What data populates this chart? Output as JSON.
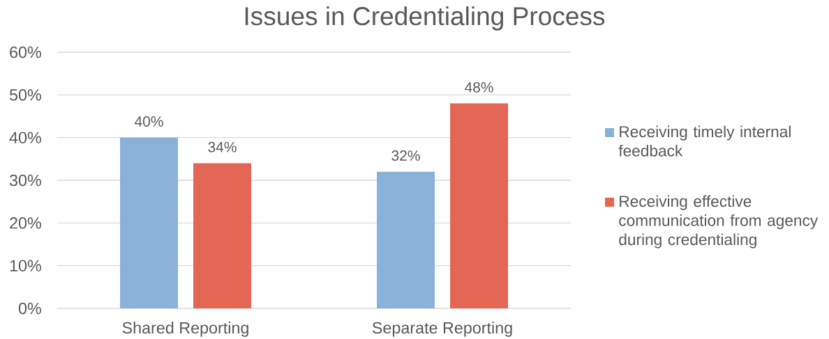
{
  "chart_data": {
    "type": "bar",
    "title": "Issues in Credentialing Process",
    "categories": [
      "Shared Reporting",
      "Separate Reporting"
    ],
    "series": [
      {
        "name": "Receiving timely internal feedback",
        "color": "#8ab1d7",
        "values": [
          40,
          32
        ],
        "value_labels": [
          "40%",
          "32%"
        ]
      },
      {
        "name": "Receiving effective communication from agency during credentialing",
        "color": "#e46654",
        "values": [
          34,
          48
        ],
        "value_labels": [
          "34%",
          "48%"
        ]
      }
    ],
    "ylim": [
      0,
      60
    ],
    "yticks": [
      {
        "value": 0,
        "label": "0%"
      },
      {
        "value": 10,
        "label": "10%"
      },
      {
        "value": 20,
        "label": "20%"
      },
      {
        "value": 30,
        "label": "30%"
      },
      {
        "value": 40,
        "label": "40%"
      },
      {
        "value": 50,
        "label": "50%"
      },
      {
        "value": 60,
        "label": "60%"
      }
    ],
    "grid": "y",
    "legend": "right"
  }
}
